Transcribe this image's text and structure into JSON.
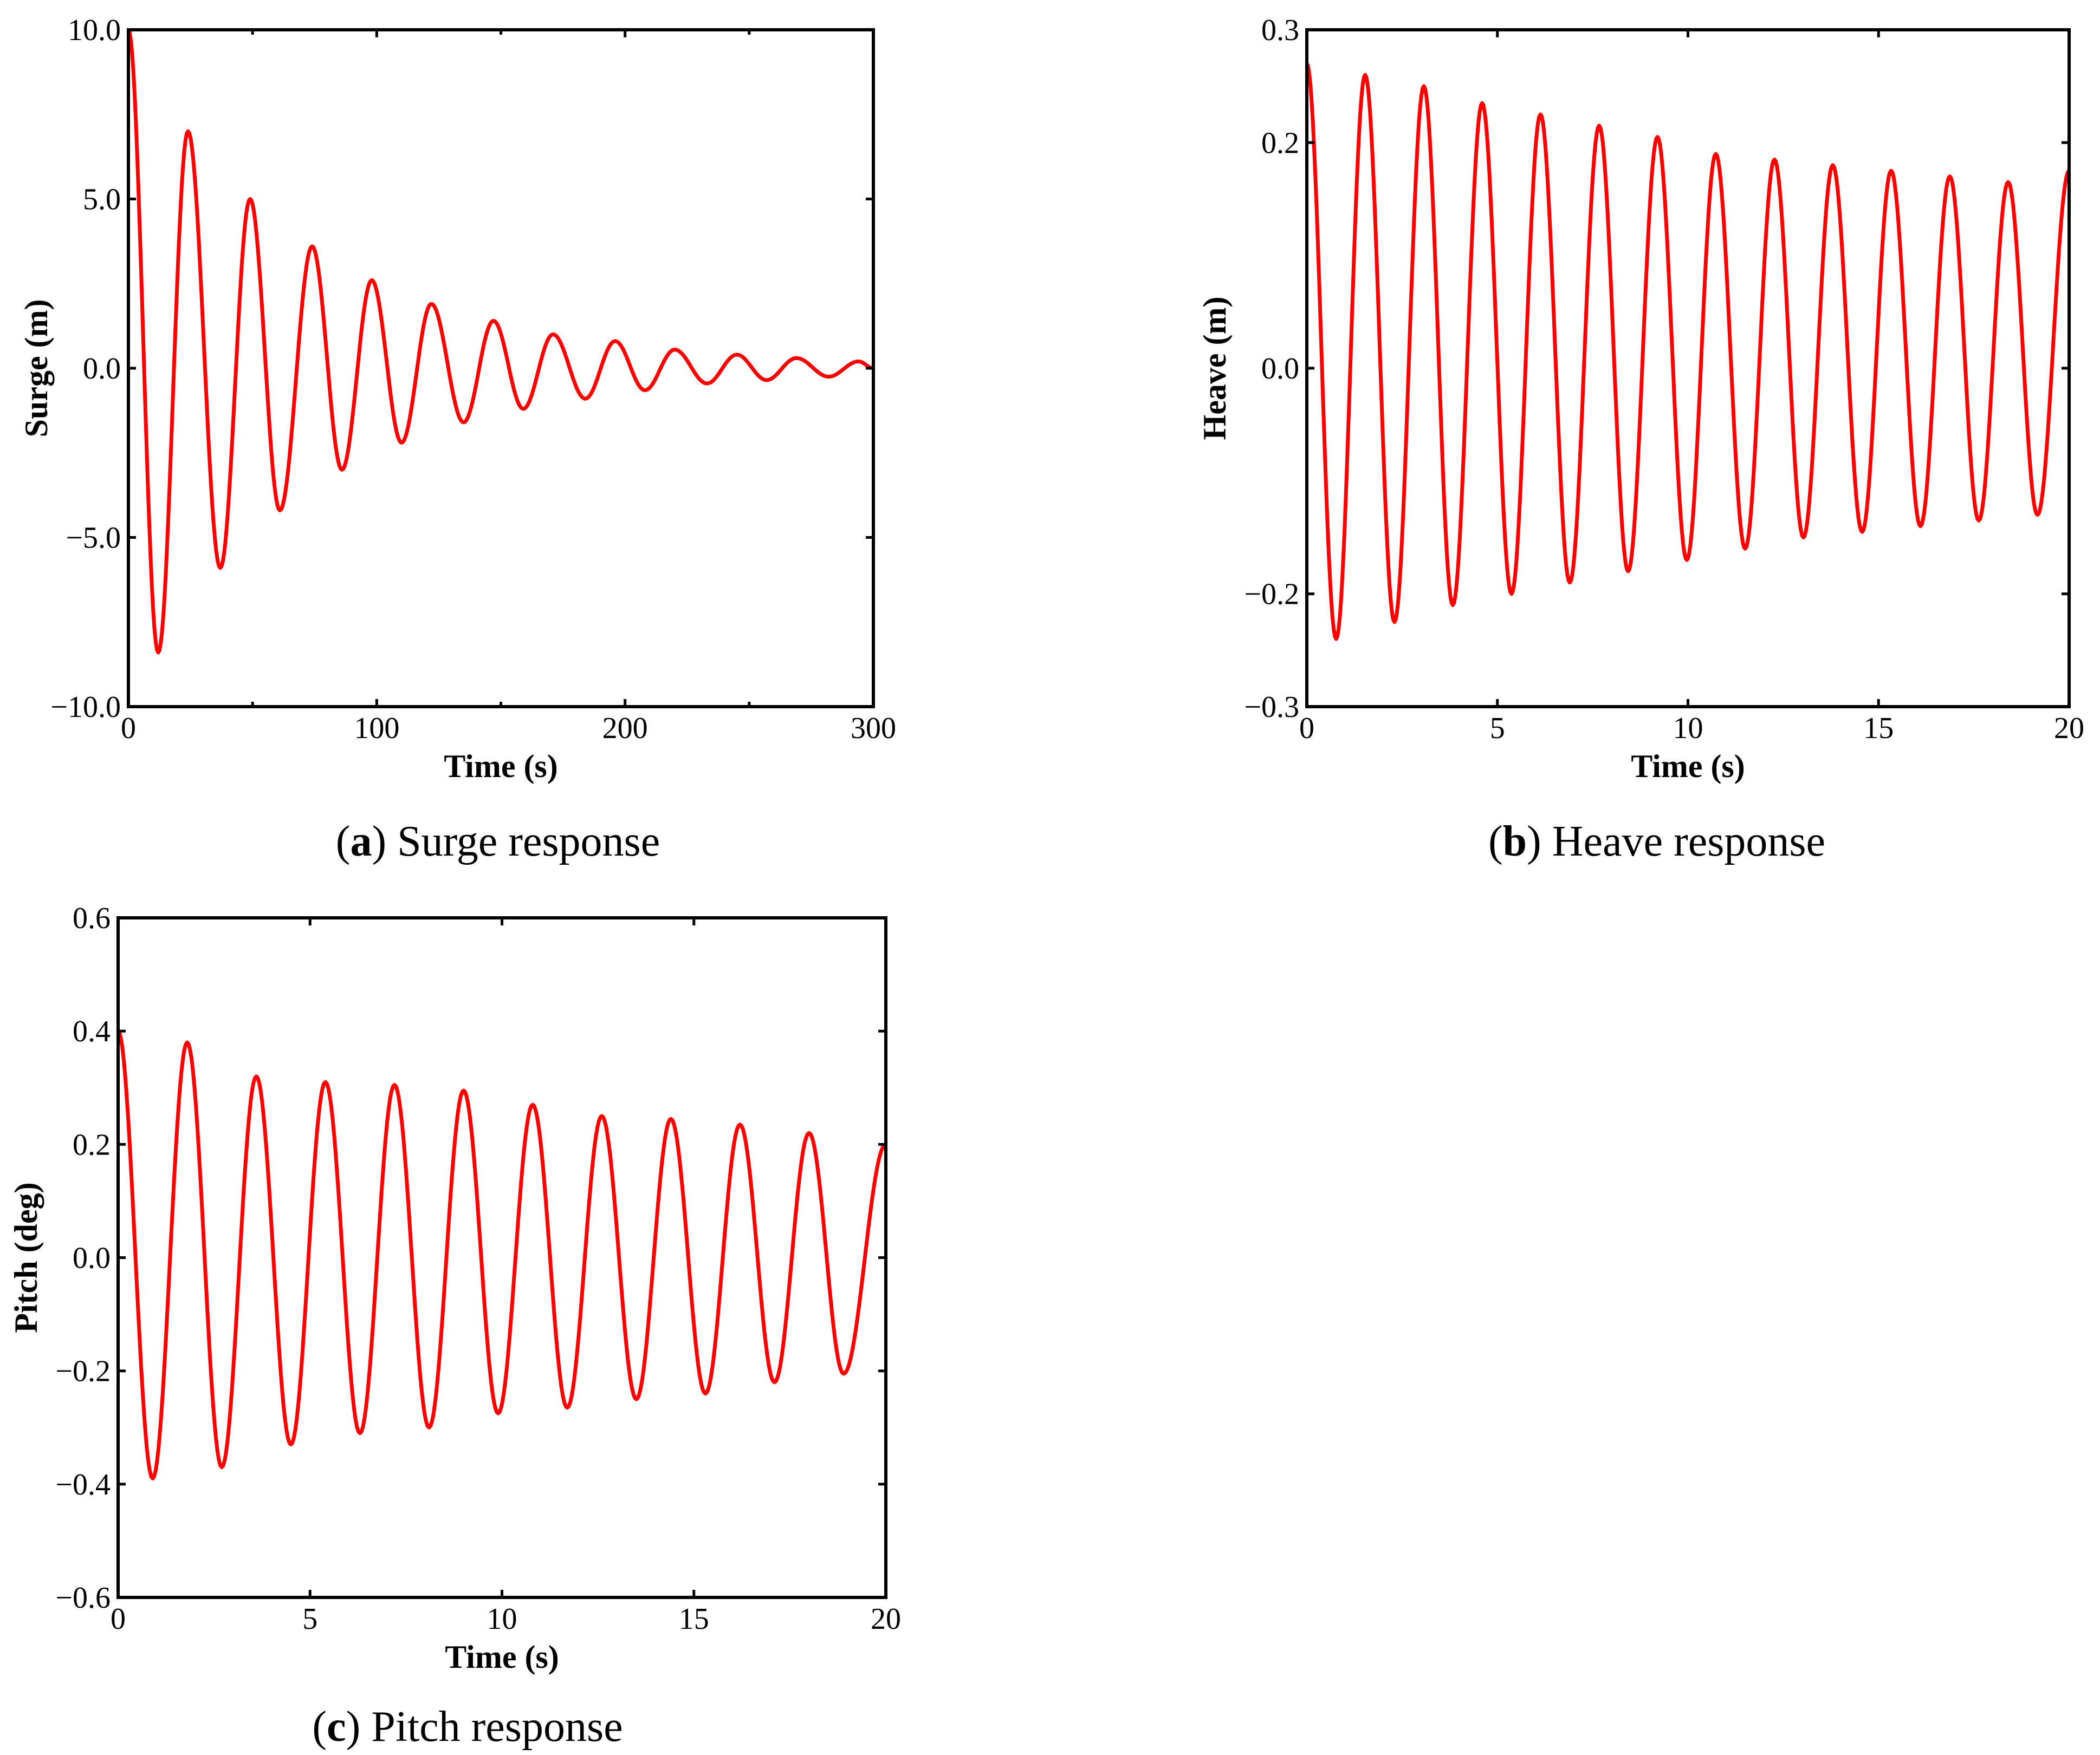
{
  "chart_data": [
    {
      "type": "line",
      "caption_letter": "a",
      "caption_text": "Surge response",
      "xlabel": "Time (s)",
      "ylabel": "Surge (m)",
      "xlim": [
        0,
        300
      ],
      "ylim": [
        -10,
        10
      ],
      "xticks": [
        0,
        100,
        200,
        300
      ],
      "xtick_labels": [
        "0",
        "100",
        "200",
        "300"
      ],
      "yticks": [
        -10,
        -5,
        0,
        5,
        10
      ],
      "ytick_labels": [
        "−10.0",
        "−5.0",
        "0.0",
        "5.0",
        "10.0"
      ],
      "minor_xticks": [
        50,
        150,
        250
      ],
      "grid": false,
      "series": [
        {
          "name": "Surge",
          "color": "#ff0000",
          "x": [
            0,
            12,
            24,
            37,
            49,
            61,
            74,
            86,
            98,
            110,
            122,
            135,
            147,
            159,
            171,
            184,
            196,
            208,
            220,
            233,
            245,
            257,
            269,
            282,
            294,
            300
          ],
          "y": [
            10.0,
            -8.4,
            7.0,
            -5.9,
            5.0,
            -4.2,
            3.6,
            -3.0,
            2.6,
            -2.2,
            1.9,
            -1.6,
            1.4,
            -1.2,
            1.0,
            -0.9,
            0.8,
            -0.65,
            0.55,
            -0.45,
            0.4,
            -0.35,
            0.3,
            -0.25,
            0.2,
            0.0
          ]
        }
      ]
    },
    {
      "type": "line",
      "caption_letter": "b",
      "caption_text": "Heave response",
      "xlabel": "Time (s)",
      "ylabel": "Heave (m)",
      "xlim": [
        0,
        20
      ],
      "ylim": [
        -0.3,
        0.3
      ],
      "xticks": [
        0,
        5,
        10,
        15,
        20
      ],
      "xtick_labels": [
        "0",
        "5",
        "10",
        "15",
        "20"
      ],
      "yticks": [
        -0.3,
        -0.2,
        0.0,
        0.2,
        0.3
      ],
      "ytick_labels": [
        "−0.3",
        "−0.2",
        "0.0",
        "0.2",
        "0.3"
      ],
      "minor_xticks": [],
      "grid": false,
      "series": [
        {
          "name": "Heave",
          "color": "#ff0000",
          "x": [
            0,
            0.77,
            1.53,
            2.3,
            3.07,
            3.83,
            4.6,
            5.37,
            6.13,
            6.9,
            7.67,
            8.43,
            9.2,
            9.97,
            10.73,
            11.5,
            12.27,
            13.03,
            13.8,
            14.57,
            15.33,
            16.1,
            16.87,
            17.63,
            18.4,
            19.17,
            20.0
          ],
          "y": [
            0.27,
            -0.24,
            0.26,
            -0.225,
            0.25,
            -0.21,
            0.235,
            -0.2,
            0.225,
            -0.19,
            0.215,
            -0.18,
            0.205,
            -0.17,
            0.19,
            -0.16,
            0.185,
            -0.15,
            0.18,
            -0.145,
            0.175,
            -0.14,
            0.17,
            -0.135,
            0.165,
            -0.13,
            0.175
          ]
        }
      ]
    },
    {
      "type": "line",
      "caption_letter": "c",
      "caption_text": "Pitch response",
      "xlabel": "Time (s)",
      "ylabel": "Pitch (deg)",
      "xlim": [
        0,
        20
      ],
      "ylim": [
        -0.6,
        0.6
      ],
      "xticks": [
        0,
        5,
        10,
        15,
        20
      ],
      "xtick_labels": [
        "0",
        "5",
        "10",
        "15",
        "20"
      ],
      "yticks": [
        -0.6,
        -0.4,
        -0.2,
        0.0,
        0.2,
        0.4,
        0.6
      ],
      "ytick_labels": [
        "−0.6",
        "−0.4",
        "−0.2",
        "0.0",
        "0.2",
        "0.4",
        "0.6"
      ],
      "minor_xticks": [],
      "grid": false,
      "series": [
        {
          "name": "Pitch",
          "color": "#ff0000",
          "x": [
            0,
            0.9,
            1.8,
            2.7,
            3.6,
            4.5,
            5.4,
            6.3,
            7.2,
            8.1,
            9.0,
            9.9,
            10.8,
            11.7,
            12.6,
            13.5,
            14.4,
            15.3,
            16.2,
            17.1,
            18.0,
            18.9,
            20.0
          ],
          "y": [
            0.4,
            -0.39,
            0.38,
            -0.37,
            0.32,
            -0.33,
            0.31,
            -0.31,
            0.305,
            -0.3,
            0.295,
            -0.275,
            0.27,
            -0.265,
            0.25,
            -0.25,
            0.245,
            -0.24,
            0.235,
            -0.22,
            0.22,
            -0.205,
            0.2
          ]
        }
      ]
    }
  ]
}
